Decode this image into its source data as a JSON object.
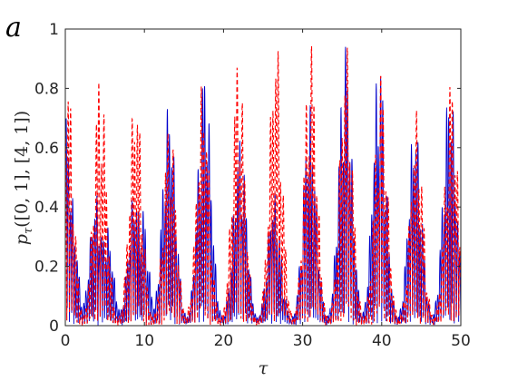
{
  "chart_data": {
    "type": "line",
    "panel_label": "a",
    "xlabel": "τ",
    "ylabel": "p_τ([0,1],[4,1])",
    "ylabel_parts": {
      "p": "p",
      "sub": "τ",
      "args": "([0, 1], [4, 1])"
    },
    "xlim": [
      0,
      50
    ],
    "ylim": [
      0,
      1
    ],
    "xticks": [
      "0",
      "10",
      "20",
      "30",
      "40",
      "50"
    ],
    "yticks": [
      "0",
      "0.2",
      "0.4",
      "0.6",
      "0.8",
      "1"
    ],
    "grid": false,
    "legend": "none",
    "series": [
      {
        "style": "solid",
        "color": "#0000cc",
        "peaks": [
          {
            "x": 0.0,
            "y": 0.72
          },
          {
            "x": 0.6,
            "y": 0.46
          },
          {
            "x": 3.9,
            "y": 0.44
          },
          {
            "x": 5.2,
            "y": 0.34
          },
          {
            "x": 8.8,
            "y": 0.46
          },
          {
            "x": 9.6,
            "y": 0.42
          },
          {
            "x": 13.1,
            "y": 0.76
          },
          {
            "x": 17.6,
            "y": 0.88
          },
          {
            "x": 22.1,
            "y": 0.64
          },
          {
            "x": 26.4,
            "y": 0.45
          },
          {
            "x": 30.9,
            "y": 0.74
          },
          {
            "x": 35.4,
            "y": 0.96
          },
          {
            "x": 39.7,
            "y": 0.92
          },
          {
            "x": 44.2,
            "y": 0.7
          },
          {
            "x": 48.6,
            "y": 0.83
          }
        ]
      },
      {
        "style": "dashed",
        "color": "#ff0000",
        "peaks": [
          {
            "x": 0.2,
            "y": 0.89
          },
          {
            "x": 4.4,
            "y": 0.88
          },
          {
            "x": 8.9,
            "y": 0.82
          },
          {
            "x": 13.2,
            "y": 0.7
          },
          {
            "x": 17.4,
            "y": 0.83
          },
          {
            "x": 21.9,
            "y": 0.93
          },
          {
            "x": 26.6,
            "y": 1.0
          },
          {
            "x": 31.0,
            "y": 0.98
          },
          {
            "x": 35.5,
            "y": 0.96
          },
          {
            "x": 39.9,
            "y": 0.87
          },
          {
            "x": 44.4,
            "y": 0.72
          },
          {
            "x": 48.8,
            "y": 0.85
          }
        ]
      }
    ]
  }
}
